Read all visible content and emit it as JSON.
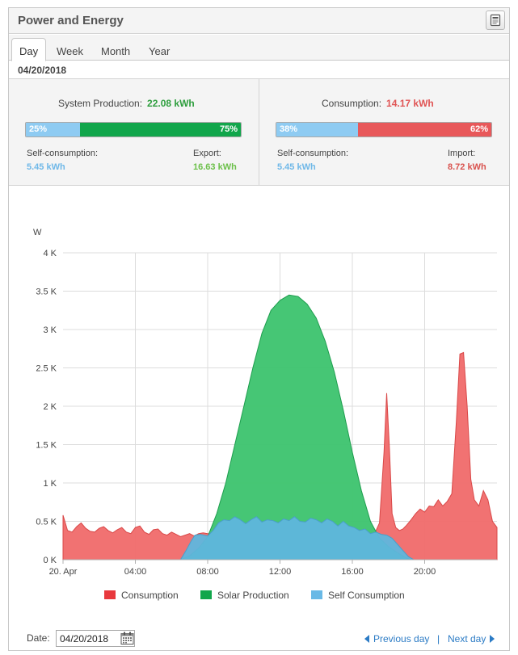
{
  "widget": {
    "title": "Power and Energy",
    "export_icon": "export-document-icon"
  },
  "tabs": [
    {
      "label": "Day",
      "active": true
    },
    {
      "label": "Week",
      "active": false
    },
    {
      "label": "Month",
      "active": false
    },
    {
      "label": "Year",
      "active": false
    }
  ],
  "selected_date": "04/20/2018",
  "production": {
    "title": "System Production:",
    "value": "22.08 kWh",
    "self_pct": "25%",
    "export_pct": "75%",
    "self_fraction": 0.25,
    "self_label": "Self-consumption:",
    "self_value": "5.45 kWh",
    "export_label": "Export:",
    "export_value": "16.63 kWh"
  },
  "consumption": {
    "title": "Consumption:",
    "value": "14.17 kWh",
    "self_pct": "38%",
    "import_pct": "62%",
    "self_fraction": 0.38,
    "self_label": "Self-consumption:",
    "self_value": "5.45 kWh",
    "import_label": "Import:",
    "import_value": "8.72 kWh"
  },
  "colors": {
    "production_value": "#2e9e3e",
    "consumption_value": "#e05454",
    "self_blue": "#8ecbf2",
    "production_green": "#11a64b",
    "consumption_red": "#e8585a",
    "consumption_fill": "#f06a6a",
    "solar_fill": "#3cc36e",
    "self_fill": "#5fb6dd",
    "export_value": "#6cc04a",
    "import_value": "#d9534f",
    "link": "#2b7bc5"
  },
  "chart_data": {
    "type": "area",
    "ylabel": "W",
    "ylim": [
      0,
      4000
    ],
    "xlim": [
      0,
      24
    ],
    "y_ticks": [
      {
        "value": 0,
        "label": "0 K"
      },
      {
        "value": 500,
        "label": "0.5 K"
      },
      {
        "value": 1000,
        "label": "1 K"
      },
      {
        "value": 1500,
        "label": "1.5 K"
      },
      {
        "value": 2000,
        "label": "2 K"
      },
      {
        "value": 2500,
        "label": "2.5 K"
      },
      {
        "value": 3000,
        "label": "3 K"
      },
      {
        "value": 3500,
        "label": "3.5 K"
      },
      {
        "value": 4000,
        "label": "4 K"
      }
    ],
    "x_ticks": [
      {
        "value": 0,
        "label": "20. Apr"
      },
      {
        "value": 4,
        "label": "04:00"
      },
      {
        "value": 8,
        "label": "08:00"
      },
      {
        "value": 12,
        "label": "12:00"
      },
      {
        "value": 16,
        "label": "16:00"
      },
      {
        "value": 20,
        "label": "20:00"
      }
    ],
    "grid": true,
    "legend_position": "bottom",
    "series": [
      {
        "name": "Consumption",
        "color": "#f06a6a",
        "legend_color": "#e8383d",
        "points": [
          [
            0,
            580
          ],
          [
            0.25,
            380
          ],
          [
            0.5,
            360
          ],
          [
            0.75,
            430
          ],
          [
            1,
            480
          ],
          [
            1.25,
            410
          ],
          [
            1.5,
            370
          ],
          [
            1.75,
            360
          ],
          [
            2,
            410
          ],
          [
            2.25,
            430
          ],
          [
            2.5,
            380
          ],
          [
            2.75,
            350
          ],
          [
            3,
            390
          ],
          [
            3.25,
            420
          ],
          [
            3.5,
            360
          ],
          [
            3.75,
            340
          ],
          [
            4,
            420
          ],
          [
            4.25,
            440
          ],
          [
            4.5,
            360
          ],
          [
            4.75,
            330
          ],
          [
            5,
            390
          ],
          [
            5.25,
            400
          ],
          [
            5.5,
            340
          ],
          [
            5.75,
            320
          ],
          [
            6,
            360
          ],
          [
            6.25,
            330
          ],
          [
            6.5,
            300
          ],
          [
            6.75,
            320
          ],
          [
            7,
            340
          ],
          [
            7.25,
            310
          ],
          [
            7.5,
            340
          ],
          [
            7.75,
            350
          ],
          [
            8,
            340
          ],
          [
            8.25,
            330
          ],
          [
            8.5,
            320
          ],
          [
            8.75,
            330
          ],
          [
            9,
            320
          ],
          [
            9.5,
            330
          ],
          [
            10,
            320
          ],
          [
            10.5,
            340
          ],
          [
            11,
            330
          ],
          [
            11.5,
            330
          ],
          [
            12,
            330
          ],
          [
            12.5,
            330
          ],
          [
            13,
            320
          ],
          [
            13.5,
            330
          ],
          [
            14,
            320
          ],
          [
            14.5,
            330
          ],
          [
            15,
            320
          ],
          [
            15.5,
            330
          ],
          [
            16,
            320
          ],
          [
            16.5,
            330
          ],
          [
            17,
            340
          ],
          [
            17.25,
            350
          ],
          [
            17.5,
            480
          ],
          [
            17.75,
            1400
          ],
          [
            17.9,
            2170
          ],
          [
            18.05,
            1450
          ],
          [
            18.2,
            600
          ],
          [
            18.4,
            420
          ],
          [
            18.6,
            380
          ],
          [
            18.8,
            400
          ],
          [
            19,
            450
          ],
          [
            19.25,
            520
          ],
          [
            19.5,
            600
          ],
          [
            19.75,
            660
          ],
          [
            20,
            620
          ],
          [
            20.25,
            700
          ],
          [
            20.5,
            690
          ],
          [
            20.75,
            780
          ],
          [
            21,
            700
          ],
          [
            21.25,
            760
          ],
          [
            21.5,
            860
          ],
          [
            21.75,
            1800
          ],
          [
            21.95,
            2680
          ],
          [
            22.15,
            2700
          ],
          [
            22.35,
            2000
          ],
          [
            22.55,
            1050
          ],
          [
            22.75,
            780
          ],
          [
            23,
            700
          ],
          [
            23.25,
            900
          ],
          [
            23.5,
            780
          ],
          [
            23.75,
            500
          ],
          [
            24,
            420
          ]
        ]
      },
      {
        "name": "Solar Production",
        "color": "#3cc36e",
        "legend_color": "#11a64b",
        "points": [
          [
            6.5,
            0
          ],
          [
            7,
            50
          ],
          [
            7.5,
            150
          ],
          [
            8,
            300
          ],
          [
            8.5,
            600
          ],
          [
            9,
            1000
          ],
          [
            9.5,
            1500
          ],
          [
            10,
            2000
          ],
          [
            10.5,
            2500
          ],
          [
            11,
            2950
          ],
          [
            11.5,
            3250
          ],
          [
            12,
            3380
          ],
          [
            12.5,
            3450
          ],
          [
            13,
            3430
          ],
          [
            13.5,
            3330
          ],
          [
            14,
            3150
          ],
          [
            14.5,
            2850
          ],
          [
            15,
            2450
          ],
          [
            15.5,
            1950
          ],
          [
            16,
            1400
          ],
          [
            16.5,
            900
          ],
          [
            17,
            500
          ],
          [
            17.5,
            280
          ],
          [
            18,
            170
          ],
          [
            18.5,
            90
          ],
          [
            19,
            20
          ],
          [
            19.3,
            0
          ]
        ]
      },
      {
        "name": "Self Consumption",
        "color": "#5fb6dd",
        "legend_color": "#69b9e6",
        "points": [
          [
            6.5,
            0
          ],
          [
            6.8,
            120
          ],
          [
            7.1,
            250
          ],
          [
            7.3,
            320
          ],
          [
            7.6,
            330
          ],
          [
            8,
            310
          ],
          [
            8.3,
            380
          ],
          [
            8.6,
            480
          ],
          [
            8.9,
            520
          ],
          [
            9.2,
            510
          ],
          [
            9.5,
            560
          ],
          [
            9.8,
            520
          ],
          [
            10.1,
            470
          ],
          [
            10.4,
            520
          ],
          [
            10.7,
            560
          ],
          [
            11,
            490
          ],
          [
            11.3,
            520
          ],
          [
            11.6,
            510
          ],
          [
            11.9,
            480
          ],
          [
            12.2,
            530
          ],
          [
            12.5,
            510
          ],
          [
            12.8,
            560
          ],
          [
            13.1,
            500
          ],
          [
            13.4,
            490
          ],
          [
            13.7,
            540
          ],
          [
            14,
            520
          ],
          [
            14.3,
            480
          ],
          [
            14.6,
            530
          ],
          [
            14.9,
            500
          ],
          [
            15.2,
            440
          ],
          [
            15.5,
            500
          ],
          [
            15.8,
            440
          ],
          [
            16.1,
            420
          ],
          [
            16.4,
            380
          ],
          [
            16.7,
            400
          ],
          [
            17,
            340
          ],
          [
            17.3,
            360
          ],
          [
            17.6,
            330
          ],
          [
            17.9,
            320
          ],
          [
            18.2,
            280
          ],
          [
            18.5,
            200
          ],
          [
            18.8,
            120
          ],
          [
            19.1,
            40
          ],
          [
            19.4,
            0
          ]
        ]
      }
    ]
  },
  "footer": {
    "date_label": "Date:",
    "date_value": "04/20/2018",
    "prev_label": "Previous day",
    "separator": "|",
    "next_label": "Next day"
  }
}
